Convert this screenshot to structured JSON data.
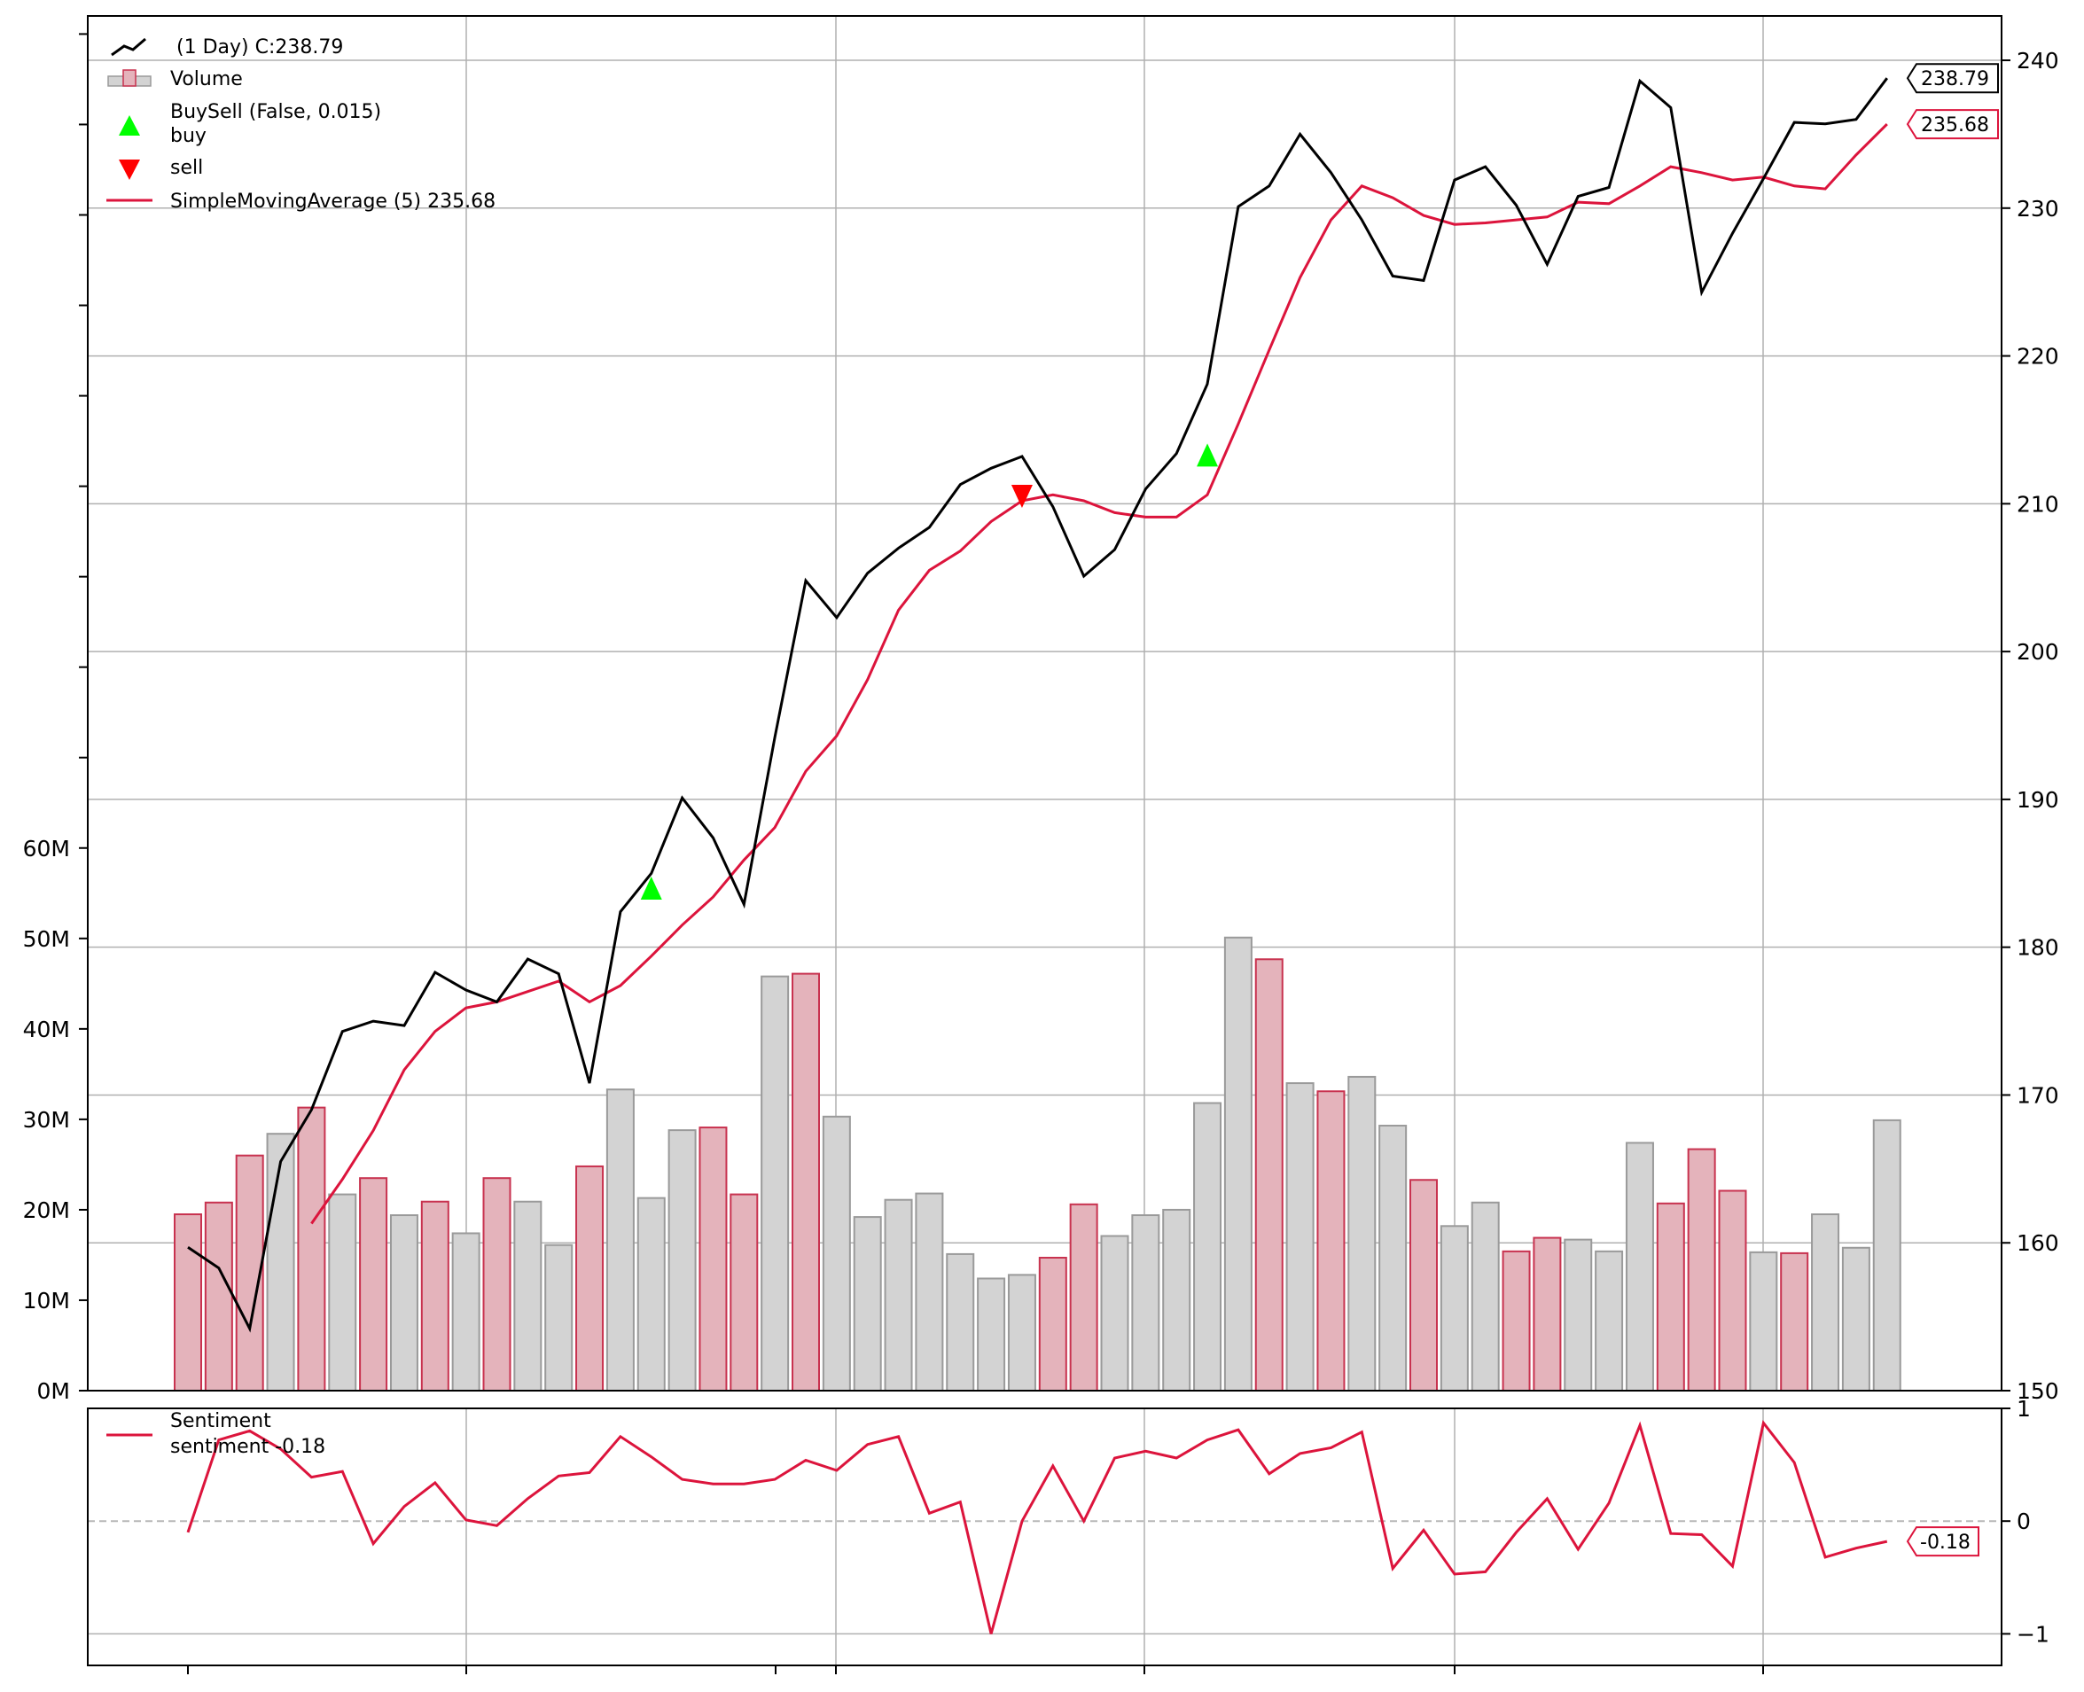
{
  "chart_data": {
    "type": "line",
    "panels": {
      "price": {
        "legend": {
          "price_label": " (1 Day) C:238.79",
          "volume_label": "Volume",
          "buysell_label": "BuySell (False, 0.015)",
          "buy_label": "buy",
          "sell_label": "sell",
          "sma_label": "SimpleMovingAverage (5) 235.68"
        },
        "y_right": {
          "min": 150,
          "max": 243,
          "ticks": [
            150,
            160,
            170,
            180,
            190,
            200,
            210,
            220,
            230,
            240
          ]
        },
        "y_left_volume": {
          "min": 0,
          "max": 152,
          "ticks": [
            0,
            10,
            20,
            30,
            40,
            50,
            60
          ],
          "tick_labels": [
            "0M",
            "10M",
            "20M",
            "30M",
            "40M",
            "50M",
            "60M"
          ]
        },
        "close": [
          159.7,
          158.3,
          154.2,
          165.5,
          169.0,
          174.3,
          175.0,
          174.7,
          178.3,
          177.1,
          176.3,
          179.2,
          178.2,
          170.8,
          182.4,
          185.0,
          190.1,
          187.4,
          182.9,
          194.2,
          204.8,
          202.3,
          205.3,
          207.0,
          208.4,
          211.3,
          212.4,
          213.2,
          209.8,
          205.1,
          206.9,
          211.0,
          213.4,
          218.1,
          230.1,
          231.5,
          235.0,
          232.4,
          229.2,
          225.4,
          225.1,
          231.9,
          232.8,
          230.2,
          226.2,
          230.8,
          231.4,
          238.6,
          236.8,
          224.3,
          228.3,
          232.0,
          235.8,
          235.7,
          236.0,
          238.79
        ],
        "sma": [
          null,
          null,
          null,
          null,
          161.3,
          164.3,
          167.6,
          171.7,
          174.3,
          175.9,
          176.3,
          177.0,
          177.7,
          176.3,
          177.4,
          179.4,
          181.5,
          183.4,
          185.9,
          188.1,
          191.9,
          194.3,
          198.1,
          202.8,
          205.5,
          206.8,
          208.8,
          210.2,
          210.6,
          210.2,
          209.4,
          209.1,
          209.1,
          210.6,
          215.4,
          220.4,
          225.3,
          229.2,
          231.5,
          230.7,
          229.5,
          228.9,
          229.0,
          229.2,
          229.4,
          230.4,
          230.3,
          231.5,
          232.8,
          232.4,
          231.9,
          232.1,
          231.5,
          231.3,
          233.6,
          235.68
        ],
        "volume_M": [
          19.5,
          20.8,
          26.0,
          28.4,
          31.3,
          21.7,
          23.5,
          19.4,
          20.9,
          17.4,
          23.5,
          20.9,
          16.1,
          24.8,
          33.3,
          21.3,
          28.8,
          29.1,
          21.7,
          45.8,
          46.1,
          30.3,
          19.2,
          21.1,
          21.8,
          15.1,
          12.4,
          12.8,
          14.7,
          20.6,
          17.1,
          19.4,
          20.0,
          31.8,
          50.1,
          47.7,
          34.0,
          33.1,
          34.7,
          29.3,
          23.3,
          18.2,
          20.8,
          15.4,
          16.9,
          16.7,
          15.4,
          27.4,
          20.7,
          26.7,
          22.1,
          15.3,
          15.2,
          19.5,
          15.8,
          29.9
        ],
        "volume_up": [
          true,
          true,
          true,
          false,
          true,
          false,
          true,
          false,
          true,
          false,
          true,
          false,
          false,
          true,
          false,
          false,
          false,
          true,
          true,
          false,
          true,
          false,
          false,
          false,
          false,
          false,
          false,
          false,
          true,
          true,
          false,
          false,
          false,
          false,
          false,
          true,
          false,
          true,
          false,
          false,
          true,
          false,
          false,
          true,
          true,
          false,
          false,
          false,
          true,
          true,
          true,
          false,
          true,
          false,
          false,
          false
        ],
        "signals": [
          {
            "type": "buy",
            "index": 15,
            "value": 184.0
          },
          {
            "type": "sell",
            "index": 27,
            "value": 210.5
          },
          {
            "type": "buy",
            "index": 33,
            "value": 213.3
          }
        ],
        "last_tags": {
          "close": "238.79",
          "sma": "235.68"
        }
      },
      "sentiment": {
        "legend": {
          "title": "Sentiment",
          "series_label": "sentiment -0.18"
        },
        "y": {
          "min": -1.28,
          "max": 1.0,
          "ticks": [
            -1,
            0,
            1
          ],
          "tick_labels": [
            "−1",
            "0",
            "1"
          ]
        },
        "values": [
          -0.1,
          0.72,
          0.8,
          0.64,
          0.39,
          0.44,
          -0.2,
          0.13,
          0.34,
          0.01,
          -0.04,
          0.2,
          0.4,
          0.43,
          0.75,
          0.57,
          0.37,
          0.33,
          0.33,
          0.37,
          0.54,
          0.45,
          0.68,
          0.75,
          0.07,
          0.17,
          -1.0,
          0.0,
          0.49,
          0.0,
          0.56,
          0.62,
          0.56,
          0.72,
          0.81,
          0.42,
          0.6,
          0.65,
          0.79,
          -0.42,
          -0.08,
          -0.47,
          -0.45,
          -0.1,
          0.2,
          -0.25,
          0.16,
          0.85,
          -0.11,
          -0.12,
          -0.4,
          0.87,
          0.52,
          -0.32,
          -0.24,
          -0.18
        ],
        "last_tag": "-0.18"
      }
    },
    "colors": {
      "close": "#000000",
      "sma": "#dc143c",
      "sentiment": "#dc143c",
      "volume_up_fill": "#e4b3bb",
      "volume_up_edge": "#c8324f",
      "volume_down_fill": "#d3d3d3",
      "volume_down_edge": "#9a9a9a",
      "buy": "#00ff00",
      "sell": "#ff0000",
      "grid": "#b0b0b0"
    },
    "grid": true
  }
}
